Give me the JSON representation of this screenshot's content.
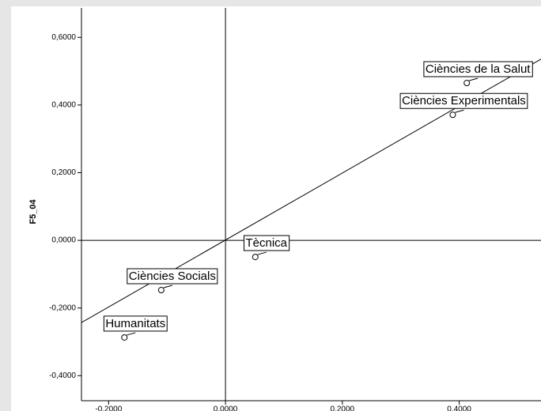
{
  "chart_data": {
    "type": "scatter",
    "y_label": "F5_04",
    "x": [
      0.413,
      0.389,
      0.051,
      -0.11,
      -0.173
    ],
    "values": [
      0.465,
      0.371,
      -0.049,
      -0.147,
      -0.287
    ],
    "point_labels": [
      "Ciències de la Salut",
      "Ciències Experimentals",
      "Tècnica",
      "Ciències Socials",
      "Humanitats"
    ],
    "xlim": [
      -0.2465,
      0.54
    ],
    "ylim": [
      -0.474,
      0.687
    ],
    "xticks": [
      {
        "value": -0.2,
        "label": "-0,2000"
      },
      {
        "value": 0,
        "label": "0,0000"
      },
      {
        "value": 0.2,
        "label": "0,2000"
      },
      {
        "value": 0.4,
        "label": "0,4000"
      }
    ],
    "yticks": [
      {
        "value": -0.4,
        "label": "-0,4000"
      },
      {
        "value": -0.2,
        "label": "-0,2000"
      },
      {
        "value": 0,
        "label": "0,0000"
      },
      {
        "value": 0.2,
        "label": "0,2000"
      },
      {
        "value": 0.4,
        "label": "0,4000"
      },
      {
        "value": 0.6,
        "label": "0,6000"
      }
    ],
    "fit_line": {
      "slope": 0.99,
      "intercept": 0.001
    },
    "reference_lines": true,
    "color": "#000000"
  }
}
